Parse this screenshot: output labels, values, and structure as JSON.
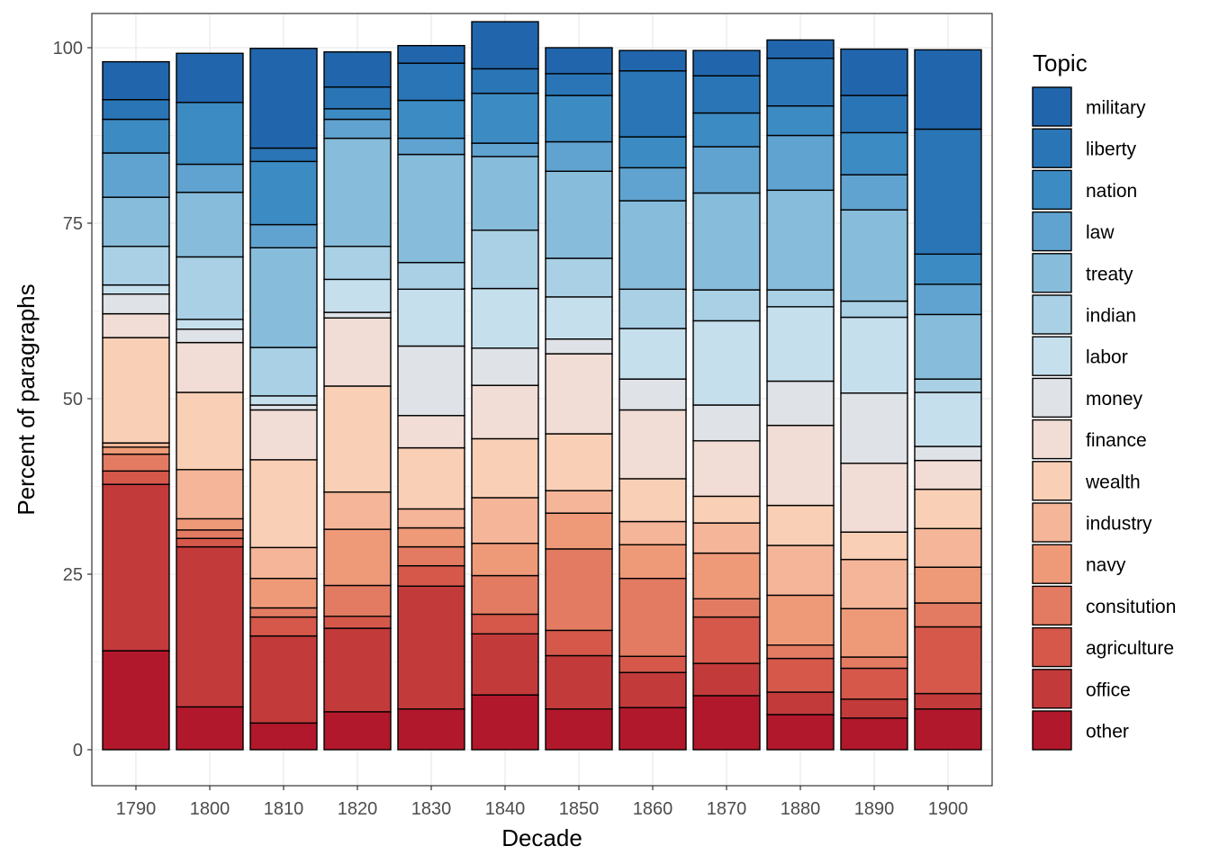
{
  "chart_data": {
    "type": "bar",
    "stacked": true,
    "xlabel": "Decade",
    "ylabel": "Percent of paragraphs",
    "ylim": [
      0,
      100
    ],
    "yticks": [
      0,
      25,
      50,
      75,
      100
    ],
    "grid": true,
    "legend_title": "Topic",
    "legend_position": "right",
    "categories": [
      "1790",
      "1800",
      "1810",
      "1820",
      "1830",
      "1840",
      "1850",
      "1860",
      "1870",
      "1880",
      "1890",
      "1900"
    ],
    "series": [
      {
        "name": "other",
        "color": "#b2182b",
        "values": [
          14.1,
          6.1,
          3.8,
          5.4,
          5.8,
          7.8,
          5.8,
          6.0,
          7.7,
          5.0,
          4.5,
          5.8
        ]
      },
      {
        "name": "office",
        "color": "#c33a3b",
        "values": [
          23.7,
          22.8,
          12.4,
          11.9,
          17.5,
          8.7,
          7.6,
          5.0,
          4.6,
          3.2,
          2.7,
          2.2
        ]
      },
      {
        "name": "agriculture",
        "color": "#d5584b",
        "values": [
          1.9,
          1.2,
          2.7,
          1.7,
          2.9,
          2.8,
          3.6,
          2.3,
          6.6,
          4.8,
          4.4,
          9.5
        ]
      },
      {
        "name": "consitution",
        "color": "#e37b62",
        "values": [
          2.4,
          1.2,
          1.3,
          4.4,
          2.7,
          5.5,
          11.6,
          11.1,
          2.6,
          1.9,
          1.6,
          3.4
        ]
      },
      {
        "name": "navy",
        "color": "#ee9a78",
        "values": [
          1.0,
          1.6,
          4.2,
          8.0,
          2.7,
          4.6,
          5.1,
          4.8,
          6.5,
          7.1,
          6.9,
          5.1
        ]
      },
      {
        "name": "industry",
        "color": "#f5b598",
        "values": [
          0.6,
          7.0,
          4.4,
          5.3,
          2.7,
          6.5,
          3.2,
          3.3,
          4.3,
          7.1,
          7.0,
          5.5
        ]
      },
      {
        "name": "wealth",
        "color": "#f9cfb5",
        "values": [
          15.0,
          11.0,
          12.5,
          15.1,
          8.7,
          8.4,
          8.1,
          6.1,
          3.8,
          5.7,
          3.9,
          5.6
        ]
      },
      {
        "name": "finance",
        "color": "#f1ddd5",
        "values": [
          3.4,
          7.1,
          7.1,
          9.7,
          4.6,
          7.6,
          11.4,
          9.8,
          7.9,
          11.4,
          9.8,
          4.1
        ]
      },
      {
        "name": "money",
        "color": "#dfe2e6",
        "values": [
          2.8,
          1.9,
          0.7,
          0.8,
          9.9,
          5.3,
          2.1,
          4.4,
          5.1,
          6.3,
          10.0,
          2.0
        ]
      },
      {
        "name": "labor",
        "color": "#c6dfed",
        "values": [
          1.3,
          1.4,
          1.3,
          4.7,
          8.1,
          8.5,
          6.0,
          7.2,
          12.0,
          10.6,
          10.8,
          7.7
        ]
      },
      {
        "name": "indian",
        "color": "#a9d0e5",
        "values": [
          5.5,
          8.9,
          6.9,
          4.7,
          3.8,
          8.3,
          5.5,
          5.6,
          4.4,
          2.4,
          2.3,
          1.9
        ]
      },
      {
        "name": "treaty",
        "color": "#87bcdb",
        "values": [
          7.0,
          9.2,
          14.2,
          15.4,
          15.4,
          10.5,
          12.4,
          12.6,
          13.8,
          14.2,
          13.0,
          9.2
        ]
      },
      {
        "name": "law",
        "color": "#61a3d0",
        "values": [
          6.3,
          4.0,
          3.3,
          2.7,
          2.3,
          1.9,
          4.2,
          4.7,
          6.6,
          7.8,
          5.0,
          4.3
        ]
      },
      {
        "name": "nation",
        "color": "#3d8bc3",
        "values": [
          4.8,
          8.8,
          9.0,
          1.5,
          5.4,
          7.1,
          6.6,
          4.4,
          4.8,
          4.2,
          6.0,
          4.3
        ]
      },
      {
        "name": "liberty",
        "color": "#2a75b5",
        "values": [
          2.8,
          0.0,
          1.9,
          3.1,
          5.3,
          3.5,
          3.1,
          9.4,
          5.3,
          6.8,
          5.3,
          17.8
        ]
      },
      {
        "name": "military",
        "color": "#2166ac",
        "values": [
          5.4,
          7.0,
          14.2,
          5.0,
          2.5,
          6.7,
          3.7,
          2.9,
          3.6,
          2.6,
          6.6,
          11.3
        ]
      }
    ]
  }
}
